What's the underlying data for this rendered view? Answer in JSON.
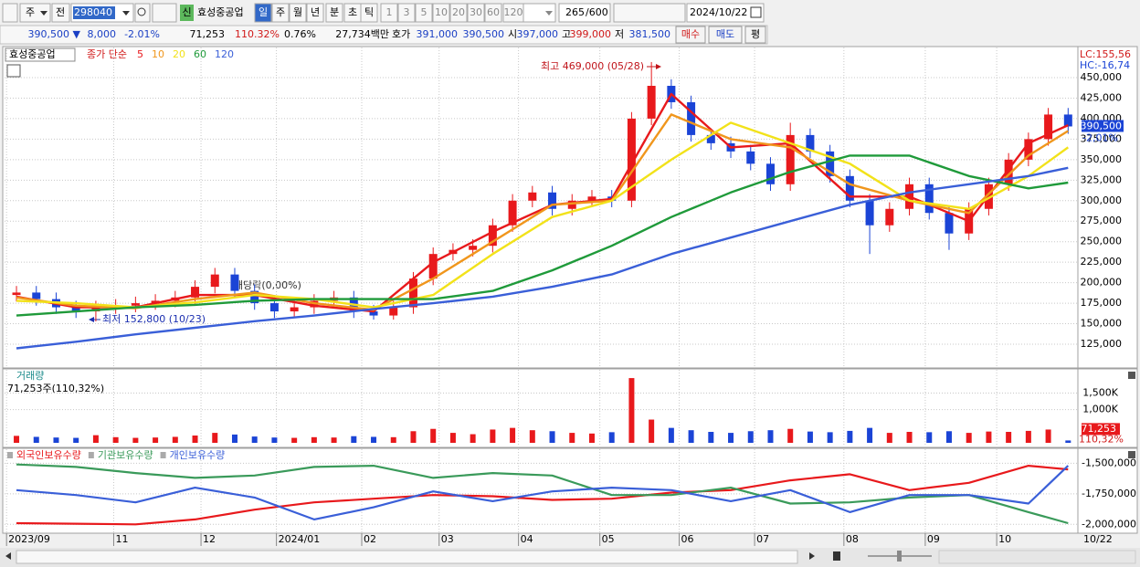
{
  "toolbar": {
    "market": "주",
    "prev": "전",
    "code": "298040",
    "new": "신",
    "name": "효성중공업",
    "periods": [
      "일",
      "주",
      "월",
      "년",
      "분",
      "초",
      "틱"
    ],
    "intervals": [
      "1",
      "3",
      "5",
      "10",
      "20",
      "30",
      "60",
      "120"
    ],
    "count": "265",
    "max": "/600",
    "date": "2024/10/22"
  },
  "info_bar": {
    "price": "390,500 ▼",
    "change": "8,000",
    "change_pct": "-2.01%",
    "volume": "71,253",
    "volume_ratio": "110.32%",
    "turnover": "0.76%",
    "amount": "27,734백만",
    "ask_label": "호가",
    "ask": "391,000",
    "bid": "390,500",
    "open_label": "시",
    "open": "397,000",
    "high_label": "고",
    "high": "399,000",
    "low_label": "저",
    "low": "381,500",
    "buy": "매수",
    "sell": "매도",
    "eval": "평"
  },
  "chart_data": [
    {
      "type": "candlestick",
      "title": "효성중공업",
      "subtitle": "종가 단순",
      "xlim": [
        -0.6,
        53.4
      ],
      "ylim": [
        99400,
        483400
      ],
      "grid": true,
      "yticks": [
        {
          "value": 125000,
          "label": "125,000"
        },
        {
          "value": 150000,
          "label": "150,000"
        },
        {
          "value": 175000,
          "label": "175,000"
        },
        {
          "value": 200000,
          "label": "200,000"
        },
        {
          "value": 225000,
          "label": "225,000"
        },
        {
          "value": 250000,
          "label": "250,000"
        },
        {
          "value": 275000,
          "label": "275,000"
        },
        {
          "value": 300000,
          "label": "300,000"
        },
        {
          "value": 325000,
          "label": "325,000"
        },
        {
          "value": 350000,
          "label": "350,000"
        },
        {
          "value": 375000,
          "label": "375,000"
        },
        {
          "value": 400000,
          "label": "400,000"
        },
        {
          "value": 425000,
          "label": "425,000"
        },
        {
          "value": 450000,
          "label": "450,000"
        }
      ],
      "open": [
        185000,
        188000,
        180000,
        170000,
        165000,
        170000,
        172000,
        175000,
        178000,
        182000,
        195000,
        210000,
        190000,
        175000,
        165000,
        170000,
        178000,
        182000,
        165000,
        160000,
        170000,
        205000,
        235000,
        240000,
        245000,
        270000,
        300000,
        310000,
        290000,
        300000,
        305000,
        300000,
        400000,
        440000,
        420000,
        380000,
        370000,
        360000,
        345000,
        320000,
        380000,
        360000,
        330000,
        300000,
        270000,
        290000,
        320000,
        285000,
        260000,
        290000,
        320000,
        350000,
        375000,
        405000
      ],
      "high": [
        196000,
        196000,
        188000,
        178000,
        178000,
        180000,
        183000,
        186000,
        190000,
        203000,
        218000,
        218000,
        198000,
        183000,
        178000,
        186000,
        190000,
        190000,
        173000,
        178000,
        213000,
        243000,
        248000,
        253000,
        278000,
        308000,
        318000,
        318000,
        308000,
        313000,
        313000,
        408000,
        469000,
        448000,
        428000,
        388000,
        378000,
        368000,
        353000,
        395000,
        388000,
        368000,
        338000,
        308000,
        298000,
        328000,
        328000,
        293000,
        298000,
        328000,
        358000,
        383000,
        413000,
        413000
      ],
      "low": [
        177000,
        172000,
        162000,
        157000,
        152800,
        162000,
        164000,
        167000,
        170000,
        174000,
        187000,
        182000,
        167000,
        157000,
        157000,
        162000,
        170000,
        157000,
        155000,
        155000,
        162000,
        197000,
        227000,
        232000,
        237000,
        262000,
        292000,
        282000,
        282000,
        292000,
        292000,
        292000,
        392000,
        412000,
        372000,
        362000,
        352000,
        337000,
        312000,
        312000,
        352000,
        322000,
        292000,
        235000,
        262000,
        282000,
        277000,
        240000,
        252000,
        282000,
        312000,
        342000,
        367000,
        381500
      ],
      "close": [
        188000,
        180000,
        170000,
        165000,
        170000,
        172000,
        175000,
        178000,
        182000,
        195000,
        210000,
        190000,
        175000,
        165000,
        170000,
        178000,
        182000,
        165000,
        160000,
        170000,
        205000,
        235000,
        240000,
        245000,
        270000,
        300000,
        310000,
        290000,
        300000,
        305000,
        300000,
        400000,
        440000,
        420000,
        380000,
        370000,
        360000,
        345000,
        320000,
        380000,
        360000,
        330000,
        300000,
        270000,
        290000,
        320000,
        285000,
        260000,
        290000,
        320000,
        350000,
        375000,
        405000,
        390500
      ],
      "up_color": "#e8191c",
      "down_color": "#1b44d6",
      "series": [
        {
          "name": "5",
          "color": "#e8191c",
          "x": [
            0,
            3,
            6,
            9,
            12,
            15,
            18,
            21,
            24,
            27,
            30,
            33,
            36,
            39,
            42,
            45,
            48,
            51,
            53
          ],
          "values": [
            183000,
            170000,
            170000,
            185000,
            185000,
            172000,
            165000,
            225000,
            262000,
            295000,
            302000,
            430000,
            365000,
            370000,
            305000,
            305000,
            275000,
            370000,
            392000
          ]
        },
        {
          "name": "10",
          "color": "#f0961c",
          "x": [
            0,
            3,
            6,
            9,
            12,
            15,
            18,
            21,
            24,
            27,
            30,
            33,
            36,
            39,
            42,
            45,
            48,
            51,
            53
          ],
          "values": [
            182000,
            172000,
            169000,
            180000,
            188000,
            175000,
            167000,
            205000,
            250000,
            295000,
            300000,
            405000,
            375000,
            365000,
            320000,
            300000,
            285000,
            355000,
            385000
          ]
        },
        {
          "name": "20",
          "color": "#f2e21a",
          "x": [
            0,
            3,
            6,
            9,
            12,
            15,
            18,
            21,
            24,
            27,
            30,
            33,
            36,
            39,
            42,
            45,
            48,
            51,
            53
          ],
          "values": [
            178000,
            175000,
            170000,
            176000,
            185000,
            180000,
            170000,
            185000,
            235000,
            280000,
            300000,
            350000,
            395000,
            370000,
            345000,
            300000,
            290000,
            330000,
            365000
          ]
        },
        {
          "name": "60",
          "color": "#1f9a3a",
          "x": [
            0,
            3,
            6,
            9,
            12,
            15,
            18,
            21,
            24,
            27,
            30,
            33,
            36,
            39,
            42,
            45,
            48,
            51,
            53
          ],
          "values": [
            160000,
            165000,
            170000,
            173000,
            178000,
            180000,
            180000,
            180000,
            190000,
            215000,
            245000,
            280000,
            310000,
            335000,
            355000,
            355000,
            330000,
            315000,
            322000
          ]
        },
        {
          "name": "120",
          "color": "#3a5fd8",
          "x": [
            0,
            3,
            6,
            9,
            12,
            15,
            18,
            21,
            24,
            27,
            30,
            33,
            36,
            39,
            42,
            45,
            48,
            51,
            53
          ],
          "values": [
            120000,
            128000,
            137000,
            145000,
            153000,
            160000,
            168000,
            175000,
            183000,
            195000,
            210000,
            235000,
            255000,
            275000,
            295000,
            310000,
            320000,
            330000,
            340000
          ]
        }
      ],
      "annotations": [
        "최고 469,000 (05/28)",
        "최저 152,800 (10/23)",
        "배당락(0,00%)"
      ],
      "last_label": "390,500",
      "last_change": "-2,01%",
      "lc": "LC:155,56",
      "hc": "HC:-16,74"
    },
    {
      "type": "bar",
      "title": "거래량",
      "subtitle": "71,253주(110,32%)",
      "xlim": [
        -0.6,
        53.4
      ],
      "ylim": [
        0,
        2200000
      ],
      "yticks": [
        {
          "value": 1000000,
          "label": "1,000K"
        },
        {
          "value": 1500000,
          "label": "1,500K"
        }
      ],
      "values": [
        210000,
        180000,
        160000,
        150000,
        230000,
        170000,
        150000,
        160000,
        180000,
        220000,
        300000,
        250000,
        190000,
        160000,
        150000,
        170000,
        160000,
        200000,
        180000,
        170000,
        350000,
        420000,
        300000,
        260000,
        400000,
        450000,
        380000,
        350000,
        300000,
        280000,
        320000,
        1950000,
        700000,
        450000,
        380000,
        330000,
        300000,
        350000,
        380000,
        420000,
        340000,
        320000,
        360000,
        450000,
        300000,
        330000,
        320000,
        350000,
        300000,
        340000,
        330000,
        360000,
        400000,
        71253
      ],
      "last_label": "71,253",
      "last_ratio": "110,32%"
    },
    {
      "type": "line",
      "xlim": [
        -0.6,
        53.4
      ],
      "ylim": [
        -2065000,
        -1415000
      ],
      "yticks": [
        {
          "value": -1500000,
          "label": "-1,500,000"
        },
        {
          "value": -1750000,
          "label": "-1,750,000"
        },
        {
          "value": -2000000,
          "label": "-2,000,000"
        }
      ],
      "xticks": [
        {
          "value": -0.5,
          "label": "2023/09"
        },
        {
          "value": 4.9,
          "label": "11"
        },
        {
          "value": 9.3,
          "label": "12"
        },
        {
          "value": 13.1,
          "label": "2024/01"
        },
        {
          "value": 17.4,
          "label": "02"
        },
        {
          "value": 21.3,
          "label": "03"
        },
        {
          "value": 25.3,
          "label": "04"
        },
        {
          "value": 29.4,
          "label": "05"
        },
        {
          "value": 33.4,
          "label": "06"
        },
        {
          "value": 37.2,
          "label": "07"
        },
        {
          "value": 41.7,
          "label": "08"
        },
        {
          "value": 45.8,
          "label": "09"
        },
        {
          "value": 49.4,
          "label": "10"
        }
      ],
      "end_label": "10/22",
      "series": [
        {
          "name": "외국인보유수량",
          "color": "#e8191c",
          "x": [
            0,
            3,
            6,
            9,
            12,
            15,
            18,
            21,
            24,
            27,
            30,
            33,
            36,
            39,
            42,
            45,
            48,
            51,
            53
          ],
          "values": [
            -1990000,
            -1995000,
            -2000000,
            -1960000,
            -1880000,
            -1820000,
            -1790000,
            -1760000,
            -1770000,
            -1800000,
            -1790000,
            -1740000,
            -1720000,
            -1640000,
            -1590000,
            -1720000,
            -1660000,
            -1520000,
            -1550000
          ]
        },
        {
          "name": "기관보유수량",
          "color": "#3a9a5a",
          "x": [
            0,
            3,
            6,
            9,
            12,
            15,
            18,
            21,
            24,
            27,
            30,
            33,
            36,
            39,
            42,
            45,
            48,
            51,
            53
          ],
          "values": [
            -1510000,
            -1530000,
            -1580000,
            -1620000,
            -1600000,
            -1530000,
            -1520000,
            -1620000,
            -1580000,
            -1600000,
            -1760000,
            -1760000,
            -1700000,
            -1830000,
            -1820000,
            -1780000,
            -1760000,
            -1900000,
            -1990000
          ]
        },
        {
          "name": "개인보유수량",
          "color": "#3a5fd8",
          "x": [
            0,
            3,
            6,
            9,
            12,
            15,
            18,
            21,
            24,
            27,
            30,
            33,
            36,
            39,
            42,
            45,
            48,
            51,
            53
          ],
          "values": [
            -1720000,
            -1760000,
            -1820000,
            -1700000,
            -1780000,
            -1960000,
            -1860000,
            -1730000,
            -1810000,
            -1730000,
            -1700000,
            -1720000,
            -1810000,
            -1720000,
            -1900000,
            -1760000,
            -1760000,
            -1830000,
            -1520000
          ]
        }
      ]
    }
  ]
}
